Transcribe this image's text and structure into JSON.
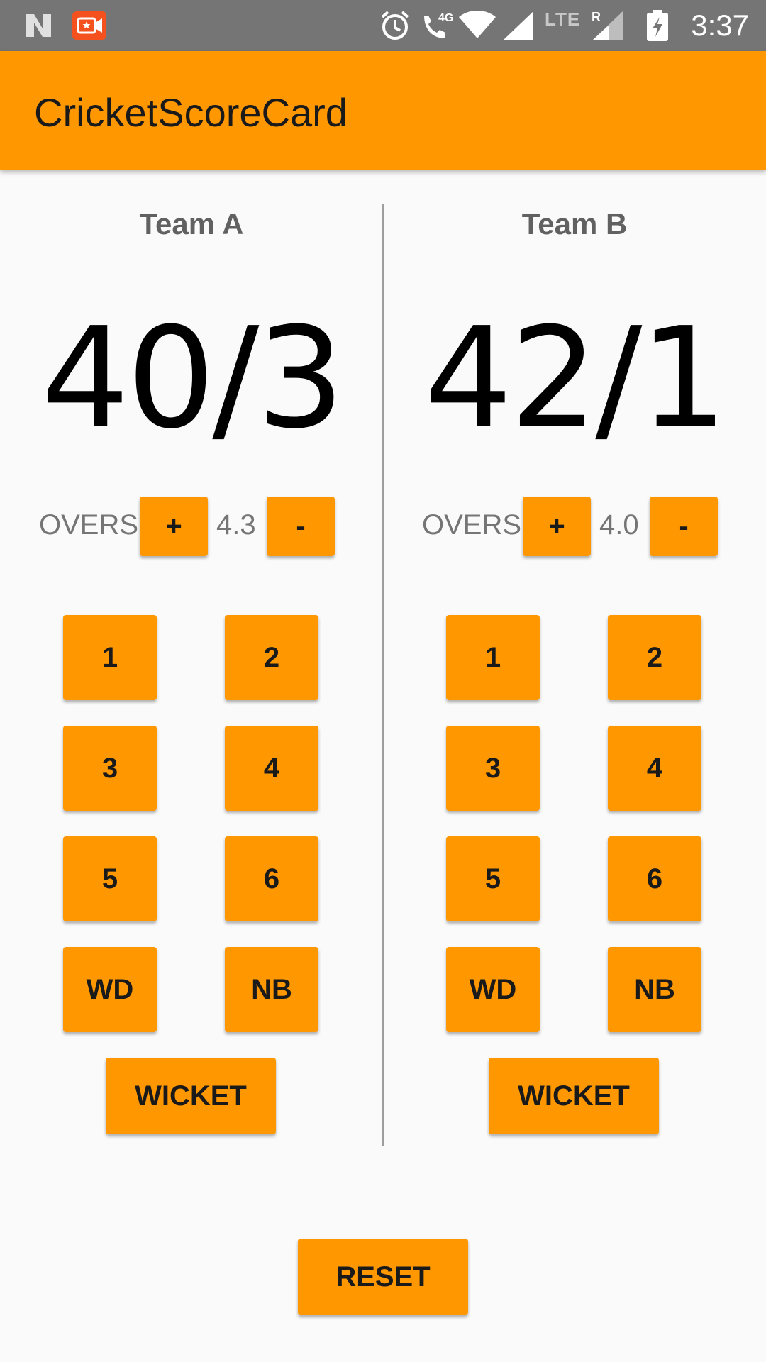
{
  "status_bar": {
    "time": "3:37",
    "network_badge": "4G",
    "lte_label": "LTE",
    "roaming_label": "R"
  },
  "app_bar": {
    "title": "CricketScoreCard"
  },
  "teams": [
    {
      "name": "Team A",
      "score": "40/3",
      "overs_label": "OVERS",
      "overs_plus": "+",
      "overs_value": "4.3",
      "overs_minus": "-",
      "run_buttons": [
        "1",
        "2",
        "3",
        "4",
        "5",
        "6",
        "WD",
        "NB"
      ],
      "wicket_label": "WICKET"
    },
    {
      "name": "Team B",
      "score": "42/1",
      "overs_label": "OVERS",
      "overs_plus": "+",
      "overs_value": "4.0",
      "overs_minus": "-",
      "run_buttons": [
        "1",
        "2",
        "3",
        "4",
        "5",
        "6",
        "WD",
        "NB"
      ],
      "wicket_label": "WICKET"
    }
  ],
  "reset_label": "RESET",
  "colors": {
    "accent": "#ff9800",
    "status_bar": "#757575",
    "background": "#fafafa"
  }
}
